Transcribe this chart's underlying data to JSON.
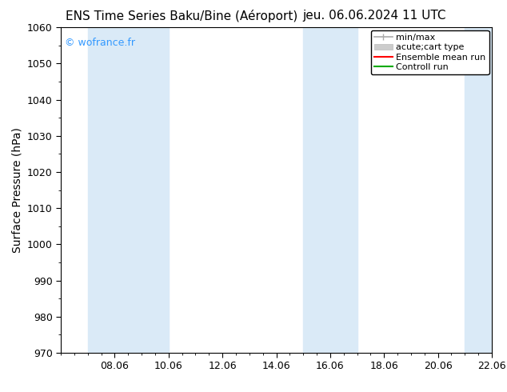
{
  "title_left": "ENS Time Series Baku/Bine (Aéroport)",
  "title_right": "jeu. 06.06.2024 11 UTC",
  "ylabel": "Surface Pressure (hPa)",
  "ylim": [
    970,
    1060
  ],
  "yticks": [
    970,
    980,
    990,
    1000,
    1010,
    1020,
    1030,
    1040,
    1050,
    1060
  ],
  "xlim": [
    0,
    16
  ],
  "xtick_positions": [
    2,
    4,
    6,
    8,
    10,
    12,
    14,
    16
  ],
  "xtick_labels": [
    "08.06",
    "10.06",
    "12.06",
    "14.06",
    "16.06",
    "18.06",
    "20.06",
    "22.06"
  ],
  "shaded_bands": [
    {
      "xmin": 1,
      "xmax": 3
    },
    {
      "xmin": 3,
      "xmax": 4
    },
    {
      "xmin": 9,
      "xmax": 11
    },
    {
      "xmin": 15,
      "xmax": 16.05
    }
  ],
  "shaded_color": "#daeaf7",
  "background_color": "#ffffff",
  "watermark": "© wofrance.fr",
  "watermark_color": "#3399ff",
  "legend_items": [
    {
      "label": "min/max",
      "color": "#aaaaaa",
      "lw": 1.2,
      "style": "minmax"
    },
    {
      "label": "acute;cart type",
      "color": "#cccccc",
      "lw": 6,
      "style": "bar"
    },
    {
      "label": "Ensemble mean run",
      "color": "#ff0000",
      "lw": 1.5,
      "style": "line"
    },
    {
      "label": "Controll run",
      "color": "#00aa00",
      "lw": 1.5,
      "style": "line"
    }
  ],
  "title_fontsize": 11,
  "tick_fontsize": 9,
  "ylabel_fontsize": 10,
  "watermark_fontsize": 9,
  "legend_fontsize": 8
}
